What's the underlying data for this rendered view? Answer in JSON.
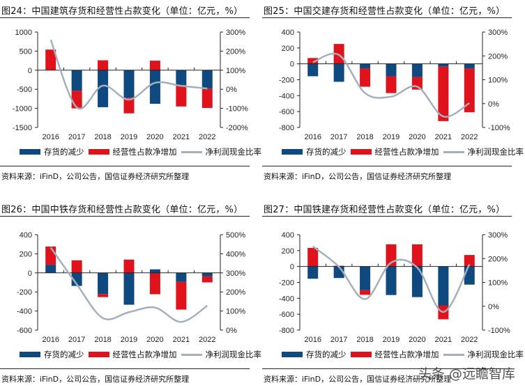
{
  "colors": {
    "inventory": "#0E4A80",
    "payables": "#E0121C",
    "ratio": "#A3B0BC"
  },
  "legend": {
    "inventory": "存货的减少",
    "payables": "经营性占款净增加",
    "ratio": "净利润现金比率"
  },
  "source": "资料来源：iFinD，公司公告，国信证券经济研究所整理",
  "watermark": "头条 @远瞻智库",
  "chart_data": [
    {
      "type": "bar+line",
      "title": "图24：中国建筑存货和经营性占款变化（单位：亿元，%）",
      "categories": [
        "2016",
        "2017",
        "2018",
        "2019",
        "2020",
        "2021",
        "2022"
      ],
      "ylim": [
        -1500,
        1000
      ],
      "yticks": [
        1000,
        500,
        0,
        -500,
        -1000,
        -1500
      ],
      "ytick_labels": [
        "1000",
        "500",
        "0",
        "-500",
        "-1000",
        "-1500"
      ],
      "y2lim": [
        -200,
        300
      ],
      "y2ticks": [
        300,
        200,
        100,
        0,
        -100,
        -200
      ],
      "y2tick_labels": [
        "300%",
        "200%",
        "100%",
        "0%",
        "-100%",
        "-200%"
      ],
      "series": [
        {
          "name": "存货的减少",
          "kind": "bar",
          "values": [
            0,
            -540,
            -970,
            -720,
            -880,
            -390,
            -480
          ]
        },
        {
          "name": "经营性占款净增加",
          "kind": "bar",
          "values": [
            540,
            -460,
            260,
            -410,
            250,
            -560,
            -510
          ]
        },
        {
          "name": "净利润现金比率",
          "kind": "line",
          "axis": "right",
          "values": [
            259,
            -95,
            19,
            -54,
            34,
            18,
            4
          ]
        }
      ],
      "legend_position": "bottom"
    },
    {
      "type": "bar+line",
      "title": "图25：中国交建存货和经营性占款变化（单位：亿元，%）",
      "categories": [
        "2016",
        "2017",
        "2018",
        "2019",
        "2020",
        "2021",
        "2022"
      ],
      "ylim": [
        -800,
        400
      ],
      "yticks": [
        400,
        200,
        0,
        -200,
        -400,
        -600,
        -800
      ],
      "ytick_labels": [
        "400",
        "200",
        "0",
        "-200",
        "-400",
        "-600",
        "-800"
      ],
      "y2lim": [
        -100,
        300
      ],
      "y2ticks": [
        300,
        200,
        100,
        0,
        -100
      ],
      "y2tick_labels": [
        "300%",
        "200%",
        "100%",
        "0%",
        "-100%"
      ],
      "series": [
        {
          "name": "存货的减少",
          "kind": "bar",
          "values": [
            -156,
            -226,
            -59,
            -156,
            -168,
            -35,
            -59
          ]
        },
        {
          "name": "经营性占款净增加",
          "kind": "bar",
          "values": [
            73,
            250,
            -229,
            -212,
            -156,
            -685,
            -550
          ]
        },
        {
          "name": "净利润现金比率",
          "kind": "line",
          "axis": "right",
          "values": [
            173,
            204,
            44,
            29,
            71,
            -54,
            2
          ]
        }
      ],
      "legend_position": "bottom"
    },
    {
      "type": "bar+line",
      "title": "图26：中国中铁存货和经营性占款变化（单位：亿元，%）",
      "categories": [
        "2016",
        "2017",
        "2018",
        "2019",
        "2020",
        "2021",
        "2022"
      ],
      "ylim": [
        -600,
        400
      ],
      "yticks": [
        400,
        200,
        0,
        -200,
        -400,
        -600
      ],
      "ytick_labels": [
        "400",
        "200",
        "0",
        "-200",
        "-400",
        "-600"
      ],
      "y2lim": [
        0,
        500
      ],
      "y2ticks": [
        500,
        400,
        300,
        200,
        100,
        0
      ],
      "y2tick_labels": [
        "500%",
        "400%",
        "300%",
        "200%",
        "100%",
        "0%"
      ],
      "series": [
        {
          "name": "存货的减少",
          "kind": "bar",
          "values": [
            85,
            -137,
            -222,
            -334,
            37,
            -95,
            -37
          ]
        },
        {
          "name": "经营性占款净增加",
          "kind": "bar",
          "values": [
            191,
            132,
            -32,
            139,
            -224,
            -290,
            -63
          ]
        },
        {
          "name": "净利润现金比率",
          "kind": "line",
          "axis": "right",
          "values": [
            433,
            240,
            63,
            94,
            118,
            43,
            128
          ]
        }
      ],
      "legend_position": "bottom"
    },
    {
      "type": "bar+line",
      "title": "图27：中国铁建存货和经营性占款变化（单位：亿元，%）",
      "categories": [
        "2016",
        "2017",
        "2018",
        "2019",
        "2020",
        "2021",
        "2022"
      ],
      "ylim": [
        -800,
        400
      ],
      "yticks": [
        400,
        200,
        0,
        -200,
        -400,
        -600,
        -800
      ],
      "ytick_labels": [
        "400",
        "200",
        "0",
        "-200",
        "-400",
        "-600",
        "-800"
      ],
      "y2lim": [
        -100,
        300
      ],
      "y2ticks": [
        300,
        200,
        100,
        0,
        -100
      ],
      "y2tick_labels": [
        "300%",
        "200%",
        "100%",
        "0%",
        "-100%"
      ],
      "series": [
        {
          "name": "存货的减少",
          "kind": "bar",
          "values": [
            -154,
            -145,
            -299,
            -359,
            -385,
            -489,
            -228
          ]
        },
        {
          "name": "经营性占款净增加",
          "kind": "bar",
          "values": [
            234,
            9,
            -57,
            279,
            279,
            -175,
            145
          ]
        },
        {
          "name": "净利润现金比率",
          "kind": "line",
          "axis": "right",
          "values": [
            251,
            165,
            30,
            183,
            162,
            -24,
            176
          ]
        }
      ],
      "legend_position": "bottom"
    }
  ]
}
